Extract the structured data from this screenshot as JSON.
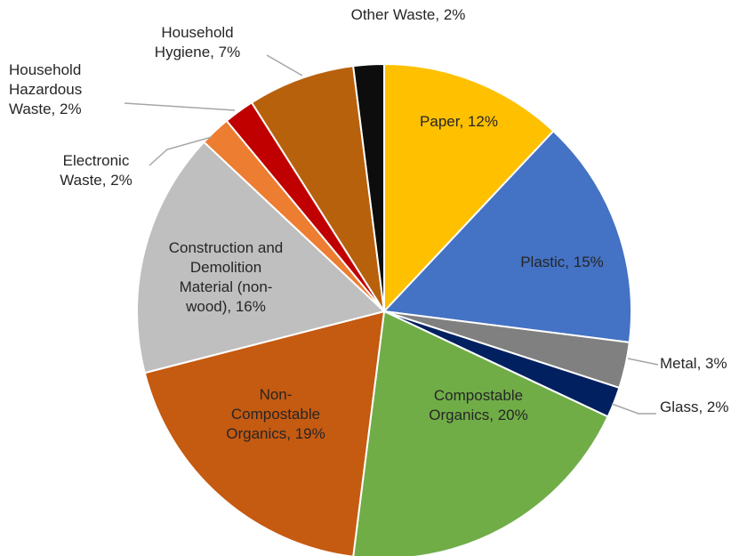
{
  "chart_data": {
    "type": "pie",
    "title": "",
    "categories": [
      "Paper",
      "Plastic",
      "Metal",
      "Glass",
      "Compostable Organics",
      "Non-Compostable Organics",
      "Construction and Demolition Material (non-wood)",
      "Electronic Waste",
      "Household Hazardous Waste",
      "Household Hygiene",
      "Other Waste"
    ],
    "values": [
      12,
      15,
      3,
      2,
      20,
      19,
      16,
      2,
      2,
      7,
      2
    ],
    "value_labels": [
      "12%",
      "15%",
      "3%",
      "2%",
      "20%",
      "19%",
      "16%",
      "2%",
      "2%",
      "7%",
      "2%"
    ],
    "colors": [
      "#ffc000",
      "#4472c4",
      "#808080",
      "#002060",
      "#70ad47",
      "#c55a11",
      "#bfbfbf",
      "#ed7d31",
      "#c00000",
      "#b8610d",
      "#0d0d0d"
    ],
    "legend": "none",
    "labels": [
      {
        "lines": [
          "Paper, 12%"
        ]
      },
      {
        "lines": [
          "Plastic, 15%"
        ]
      },
      {
        "lines": [
          "Metal, 3%"
        ]
      },
      {
        "lines": [
          "Glass, 2%"
        ]
      },
      {
        "lines": [
          "Compostable",
          "Organics, 20%"
        ]
      },
      {
        "lines": [
          "Non-",
          "Compostable",
          "Organics, 19%"
        ]
      },
      {
        "lines": [
          "Construction and",
          "Demolition",
          "Material (non-",
          "wood), 16%"
        ]
      },
      {
        "lines": [
          "Electronic",
          "Waste, 2%"
        ]
      },
      {
        "lines": [
          "Household",
          "Hazardous",
          "Waste, 2%"
        ]
      },
      {
        "lines": [
          "Household",
          "Hygiene, 7%"
        ]
      },
      {
        "lines": [
          "Other Waste, 2%"
        ]
      }
    ]
  }
}
